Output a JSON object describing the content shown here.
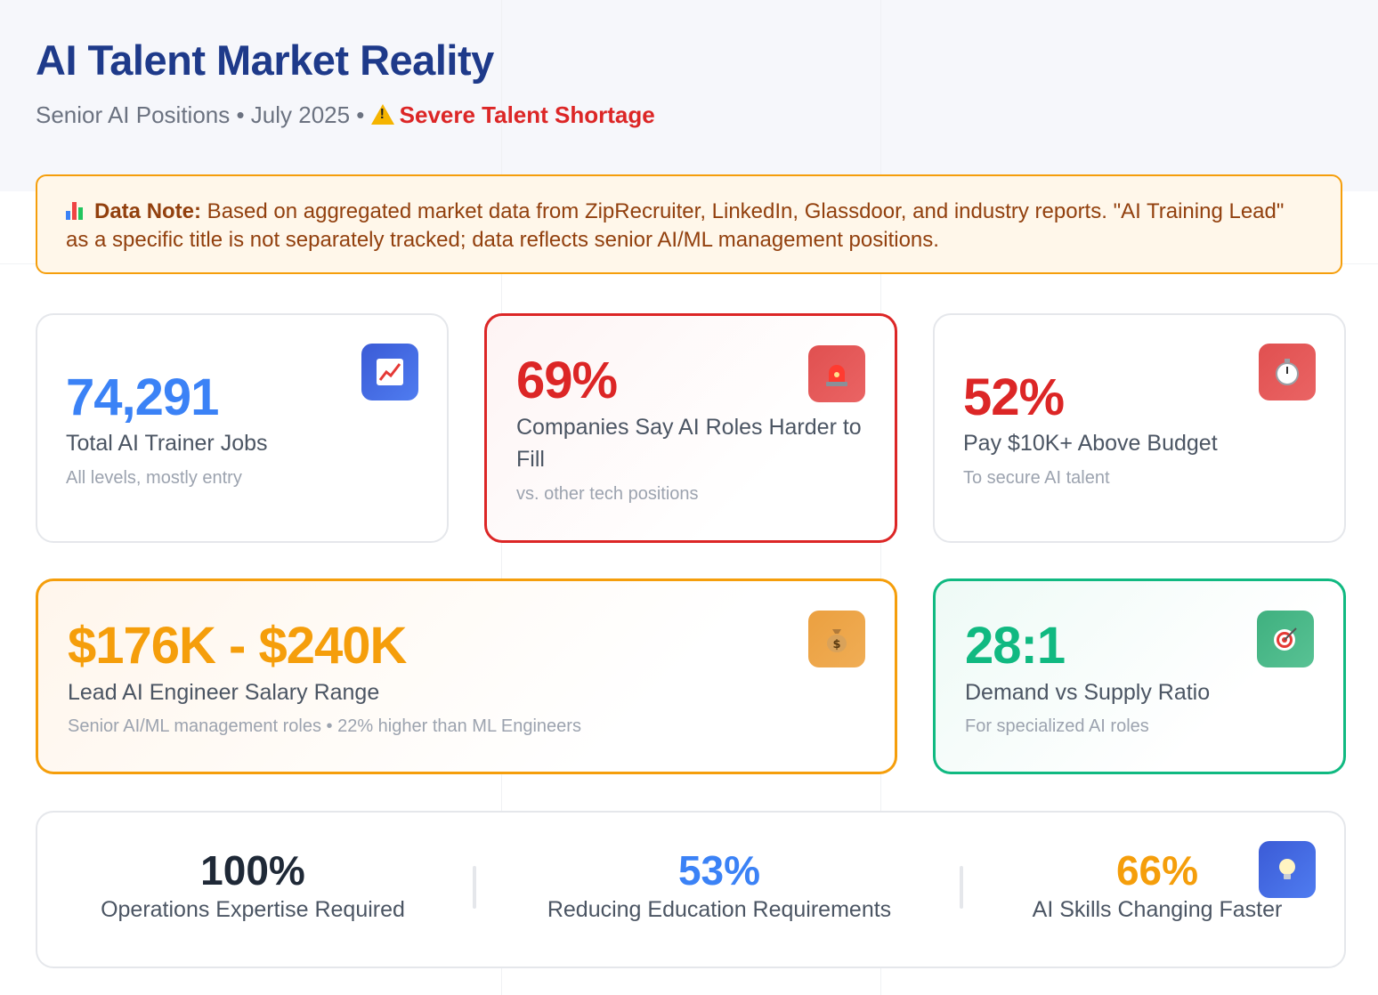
{
  "header": {
    "title": "AI Talent Market Reality",
    "subtitle_prefix": "Senior AI Positions • July 2025 • ",
    "alert": "Severe Talent Shortage",
    "alert_icon": "warning-icon"
  },
  "note": {
    "icon": "bar-chart-icon",
    "label": "Data Note:",
    "text": " Based on aggregated market data from ZipRecruiter, LinkedIn, Glassdoor, and industry reports. \"AI Training Lead\" as a specific title is not separately tracked; data reflects senior AI/ML management positions."
  },
  "cards": {
    "total_jobs": {
      "value": "74,291",
      "label": "Total AI Trainer Jobs",
      "sub": "All levels, mostly entry",
      "icon": "trending-chart-icon",
      "color": "#3b82f6"
    },
    "harder_to_fill": {
      "value": "69%",
      "label": "Companies Say AI Roles Harder to Fill",
      "sub": "vs. other tech positions",
      "icon": "siren-icon",
      "color": "#dc2626"
    },
    "above_budget": {
      "value": "52%",
      "label": "Pay $10K+ Above Budget",
      "sub": "To secure AI talent",
      "icon": "stopwatch-icon",
      "color": "#dc2626"
    },
    "salary": {
      "value": "$176K - $240K",
      "label": "Lead AI Engineer Salary Range",
      "sub": "Senior AI/ML management roles • 22% higher than ML Engineers",
      "icon": "money-bag-icon",
      "color": "#f59e0b"
    },
    "ratio": {
      "value": "28:1",
      "label": "Demand vs Supply Ratio",
      "sub": "For specialized AI roles",
      "icon": "target-icon",
      "color": "#10b981"
    }
  },
  "stats": {
    "icon": "lightbulb-icon",
    "items": [
      {
        "value": "100%",
        "label": "Operations Expertise Required",
        "color": "#1f2937"
      },
      {
        "value": "53%",
        "label": "Reducing Education Requirements",
        "color": "#3b82f6"
      },
      {
        "value": "66%",
        "label": "AI Skills Changing Faster",
        "color": "#f59e0b"
      }
    ]
  }
}
